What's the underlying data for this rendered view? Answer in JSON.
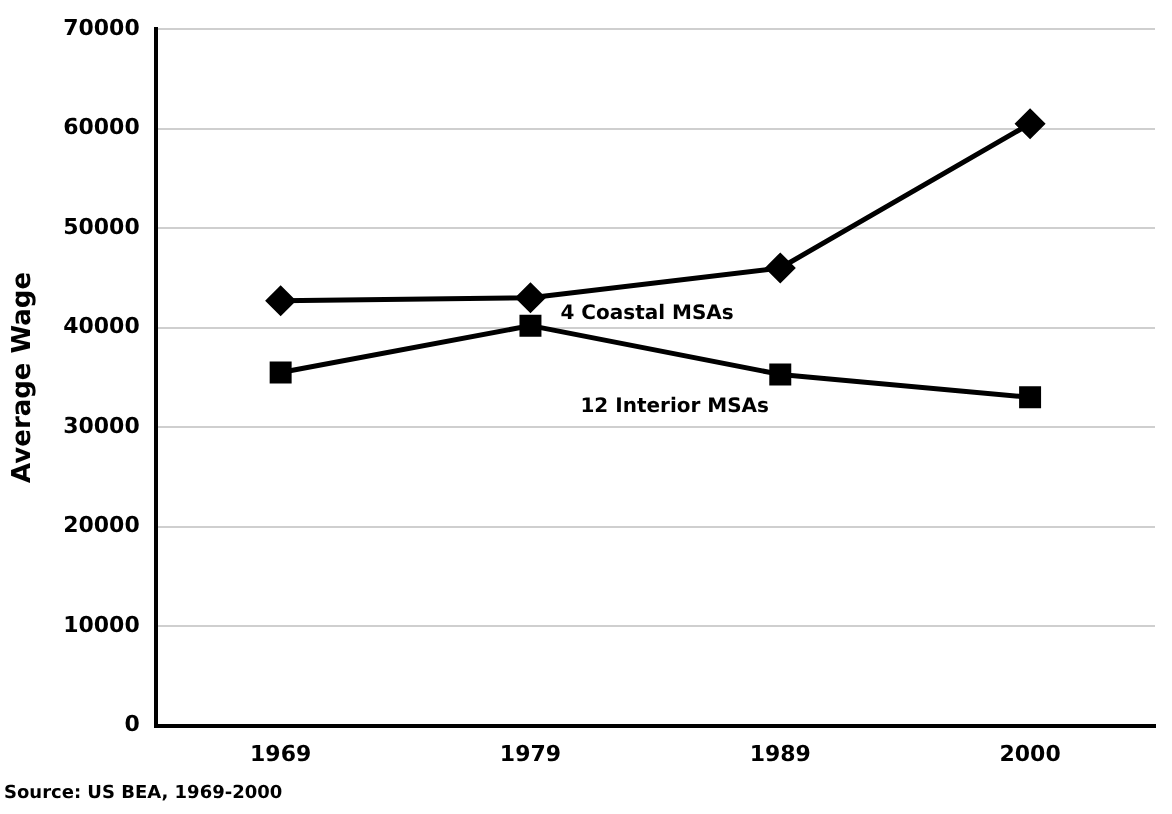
{
  "chart_data": {
    "type": "line",
    "ylabel": "Average Wage",
    "categories": [
      "1969",
      "1979",
      "1989",
      "2000"
    ],
    "series": [
      {
        "name": "4 Coastal MSAs",
        "color": "#000000",
        "marker": "diamond",
        "values": [
          42700,
          43000,
          46000,
          60500
        ]
      },
      {
        "name": "12 Interior MSAs",
        "color": "#000000",
        "marker": "square",
        "values": [
          35500,
          40200,
          35300,
          33000
        ]
      }
    ],
    "ylim": [
      0,
      70000
    ],
    "yticks": [
      0,
      10000,
      20000,
      30000,
      40000,
      50000,
      60000,
      70000
    ],
    "grid": "y",
    "legend": false,
    "line_style": "solid",
    "annotations": [
      "Source: US BEA, 1969-2000"
    ]
  }
}
